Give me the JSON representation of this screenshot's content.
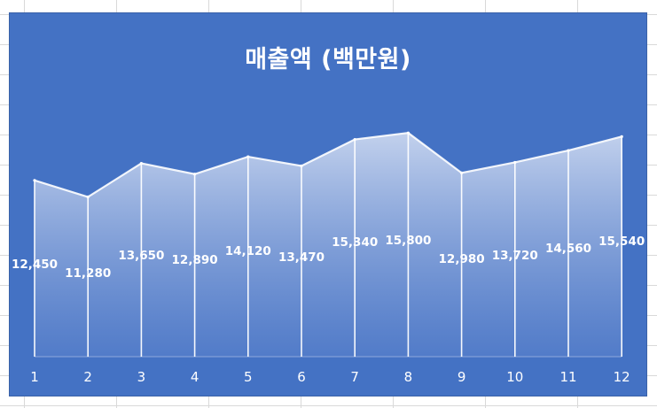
{
  "chart_data": {
    "type": "area",
    "title": "매출액 (백만원)",
    "xlabel": "",
    "ylabel": "",
    "categories": [
      "1",
      "2",
      "3",
      "4",
      "5",
      "6",
      "7",
      "8",
      "9",
      "10",
      "11",
      "12"
    ],
    "series": [
      {
        "values": [
          12450,
          11280,
          13650,
          12890,
          14120,
          13470,
          15340,
          15800,
          12980,
          13720,
          14560,
          15540
        ],
        "labels": [
          "12,450",
          "11,280",
          "13,650",
          "12,890",
          "14,120",
          "13,470",
          "15,340",
          "15,800",
          "12,980",
          "13,720",
          "14,560",
          "15,540"
        ]
      }
    ],
    "ylim": [
      0,
      18000
    ],
    "grid": false,
    "legend": "none",
    "colors": {
      "background": "#4472c4",
      "line": "#ffffff",
      "area_top": "#c9d6ef",
      "area_bottom": "#5b82cc",
      "text": "#ffffff"
    }
  }
}
